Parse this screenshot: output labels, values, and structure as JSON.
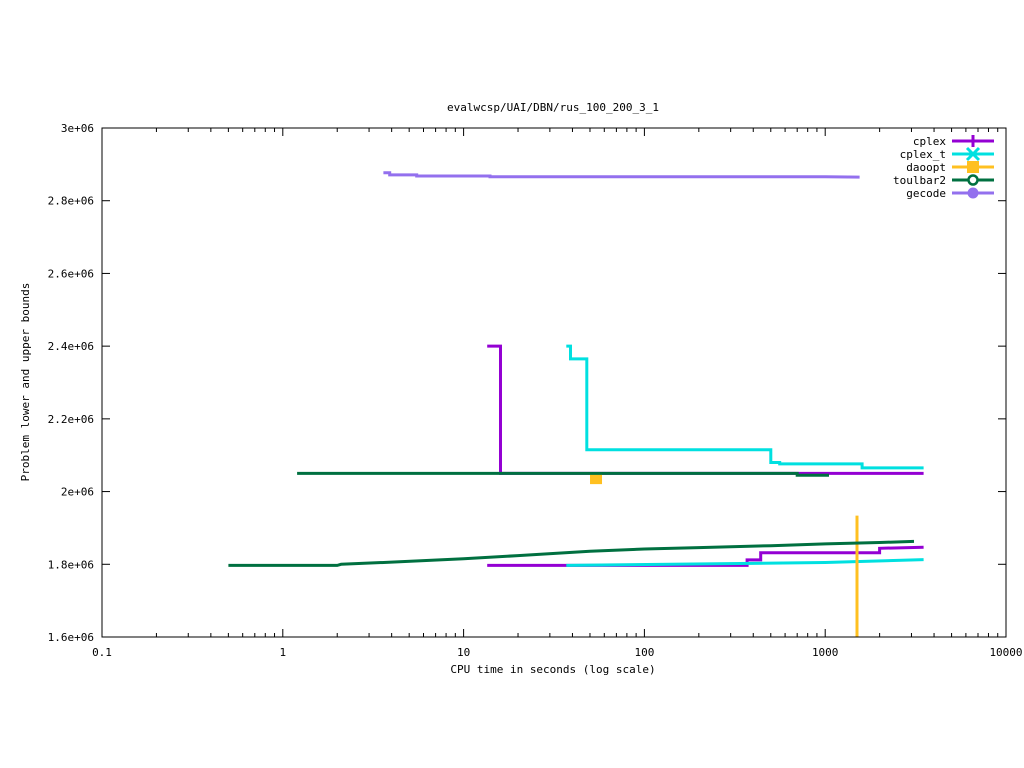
{
  "chart_data": {
    "type": "line",
    "title": "evalwcsp/UAI/DBN/rus_100_200_3_1",
    "xlabel": "CPU time in seconds (log scale)",
    "ylabel": "Problem lower and upper bounds",
    "xscale": "log",
    "xlim": [
      0.1,
      10000
    ],
    "ylim": [
      1600000,
      3000000
    ],
    "xticks": [
      {
        "value": 0.1,
        "label": "0.1"
      },
      {
        "value": 1,
        "label": "1"
      },
      {
        "value": 10,
        "label": "10"
      },
      {
        "value": 100,
        "label": "100"
      },
      {
        "value": 1000,
        "label": "1000"
      },
      {
        "value": 10000,
        "label": "10000"
      }
    ],
    "yticks": [
      {
        "value": 1600000,
        "label": "1.6e+06"
      },
      {
        "value": 1800000,
        "label": "1.8e+06"
      },
      {
        "value": 2000000,
        "label": "2e+06"
      },
      {
        "value": 2200000,
        "label": "2.2e+06"
      },
      {
        "value": 2400000,
        "label": "2.4e+06"
      },
      {
        "value": 2600000,
        "label": "2.6e+06"
      },
      {
        "value": 2800000,
        "label": "2.8e+06"
      },
      {
        "value": 3000000,
        "label": "3e+06"
      }
    ],
    "grid": false,
    "legend_position": "top-right",
    "series": [
      {
        "name": "cplex",
        "color": "#9400d3",
        "marker": "plus",
        "lines": [
          [
            [
              13.5,
              2400000
            ],
            [
              16,
              2400000
            ],
            [
              16,
              2050000
            ],
            [
              3500,
              2050000
            ]
          ],
          [
            [
              13.5,
              1797000
            ],
            [
              370,
              1797000
            ],
            [
              370,
              1812000
            ],
            [
              440,
              1812000
            ],
            [
              440,
              1832000
            ],
            [
              2000,
              1832000
            ],
            [
              2000,
              1844000
            ],
            [
              3500,
              1847000
            ]
          ]
        ]
      },
      {
        "name": "cplex_t",
        "color": "#00e0e0",
        "marker": "cross",
        "lines": [
          [
            [
              37,
              2400000
            ],
            [
              39,
              2400000
            ],
            [
              39,
              2365000
            ],
            [
              48,
              2365000
            ],
            [
              48,
              2115000
            ],
            [
              500,
              2115000
            ],
            [
              500,
              2080000
            ],
            [
              560,
              2080000
            ],
            [
              560,
              2076000
            ],
            [
              1600,
              2076000
            ],
            [
              1600,
              2065000
            ],
            [
              3500,
              2065000
            ]
          ],
          [
            [
              37,
              1797000
            ],
            [
              1000,
              1805000
            ],
            [
              3500,
              1813000
            ]
          ]
        ]
      },
      {
        "name": "daoopt",
        "color": "#ffc020",
        "marker": "square",
        "lines": [
          [
            [
              1500,
              1934000
            ],
            [
              1500,
              1600000
            ]
          ]
        ],
        "points": [
          [
            54,
            2037000
          ]
        ]
      },
      {
        "name": "toulbar2",
        "color": "#007040",
        "marker": "circle-open",
        "lines": [
          [
            [
              1.2,
              2050000
            ],
            [
              700,
              2050000
            ],
            [
              700,
              2045000
            ],
            [
              1050,
              2045000
            ]
          ],
          [
            [
              0.5,
              1797000
            ],
            [
              2,
              1797000
            ],
            [
              2.1,
              1800000
            ],
            [
              4,
              1806000
            ],
            [
              10,
              1815000
            ],
            [
              20,
              1824000
            ],
            [
              50,
              1836000
            ],
            [
              100,
              1842000
            ],
            [
              200,
              1846000
            ],
            [
              500,
              1851000
            ],
            [
              1000,
              1856000
            ],
            [
              2000,
              1860000
            ],
            [
              3100,
              1863000
            ]
          ]
        ]
      },
      {
        "name": "gecode",
        "color": "#9370ee",
        "marker": "circle",
        "lines": [
          [
            [
              3.6,
              2877000
            ],
            [
              3.9,
              2877000
            ],
            [
              3.9,
              2871000
            ],
            [
              5.5,
              2871000
            ],
            [
              5.5,
              2868000
            ],
            [
              14,
              2868000
            ],
            [
              14,
              2866000
            ],
            [
              1000,
              2866000
            ],
            [
              1550,
              2865000
            ]
          ]
        ]
      }
    ]
  }
}
